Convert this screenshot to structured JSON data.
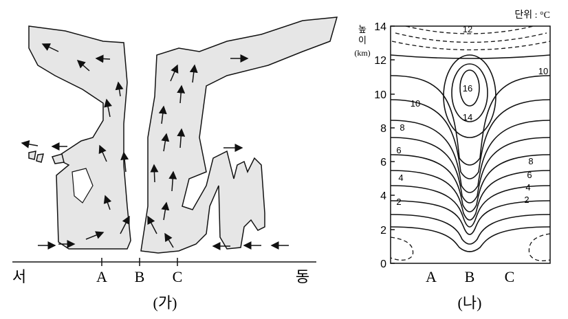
{
  "left": {
    "points": [
      "A",
      "B",
      "C"
    ],
    "west": "서",
    "east": "동",
    "caption": "(가)"
  },
  "right": {
    "unit": "단위 : °C",
    "axis_label": [
      "높",
      "이",
      "(km)"
    ],
    "yticks": [
      "0",
      "2",
      "4",
      "6",
      "8",
      "10",
      "12",
      "14"
    ],
    "points": [
      "A",
      "B",
      "C"
    ],
    "contour_labels": [
      "12",
      "10",
      "10",
      "16",
      "14",
      "8",
      "6",
      "4",
      "2",
      "8",
      "6",
      "4",
      "2"
    ],
    "caption": "(나)"
  }
}
